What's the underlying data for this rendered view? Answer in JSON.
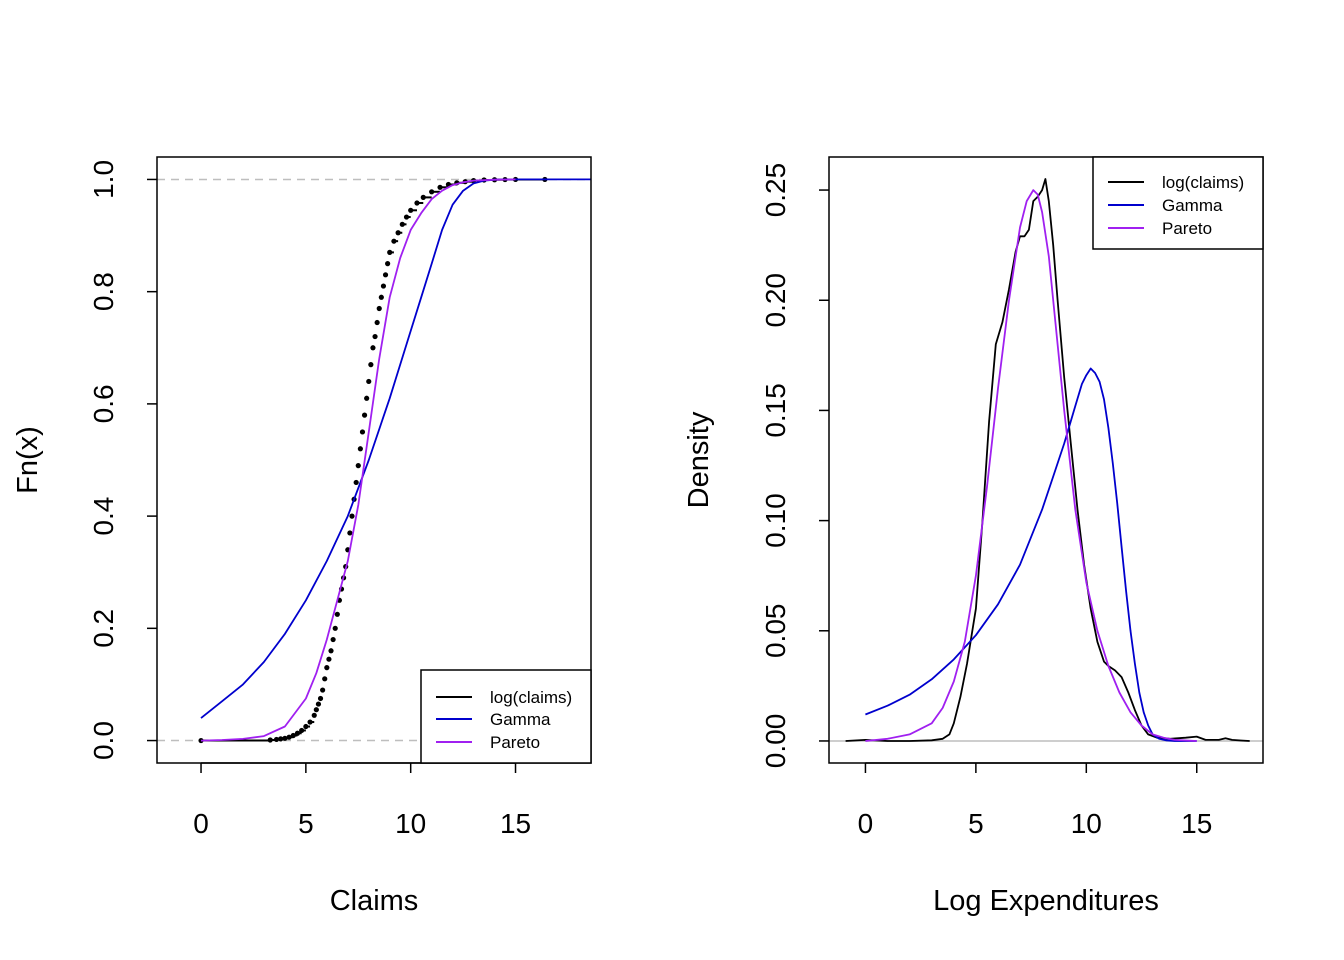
{
  "chart_data": [
    {
      "type": "line",
      "title": "",
      "xlabel": "Claims",
      "ylabel": "Fn(x)",
      "xlim": [
        -2.1,
        18.6
      ],
      "ylim": [
        -0.04,
        1.04
      ],
      "x_ticks": [
        "0",
        "5",
        "10",
        "15"
      ],
      "x_tick_values": [
        0,
        5,
        10,
        15
      ],
      "y_ticks": [
        "0.0",
        "0.2",
        "0.4",
        "0.6",
        "0.8",
        "1.0"
      ],
      "y_tick_values": [
        0.0,
        0.2,
        0.4,
        0.6,
        0.8,
        1.0
      ],
      "reference_lines_y": [
        0,
        1
      ],
      "legend": {
        "position": "bottom-right",
        "entries": [
          "log(claims)",
          "Gamma",
          "Pareto"
        ]
      },
      "colors": {
        "empirical": "#000000",
        "gamma": "#0000CD",
        "pareto": "#A020F0",
        "reference": "#BEBEBE"
      },
      "series": [
        {
          "name": "log(claims)",
          "style": "ecdf-points",
          "x": [
            0.0,
            3.3,
            3.6,
            3.8,
            4.0,
            4.2,
            4.4,
            4.6,
            4.8,
            5.0,
            5.2,
            5.4,
            5.5,
            5.6,
            5.7,
            5.8,
            5.9,
            6.0,
            6.1,
            6.2,
            6.3,
            6.4,
            6.5,
            6.6,
            6.7,
            6.8,
            6.9,
            7.0,
            7.1,
            7.2,
            7.3,
            7.4,
            7.5,
            7.6,
            7.7,
            7.8,
            7.9,
            8.0,
            8.1,
            8.2,
            8.3,
            8.4,
            8.5,
            8.6,
            8.7,
            8.8,
            8.9,
            9.0,
            9.2,
            9.4,
            9.6,
            9.8,
            10.0,
            10.3,
            10.6,
            11.0,
            11.4,
            11.8,
            12.2,
            12.6,
            13.0,
            13.5,
            14.0,
            14.5,
            15.0,
            16.4
          ],
          "y": [
            0.0,
            0.001,
            0.002,
            0.003,
            0.004,
            0.006,
            0.009,
            0.013,
            0.018,
            0.025,
            0.033,
            0.045,
            0.055,
            0.065,
            0.075,
            0.09,
            0.11,
            0.13,
            0.145,
            0.16,
            0.18,
            0.2,
            0.225,
            0.25,
            0.27,
            0.29,
            0.31,
            0.34,
            0.37,
            0.4,
            0.43,
            0.46,
            0.49,
            0.52,
            0.55,
            0.58,
            0.61,
            0.64,
            0.67,
            0.7,
            0.72,
            0.745,
            0.77,
            0.79,
            0.81,
            0.83,
            0.85,
            0.87,
            0.89,
            0.905,
            0.92,
            0.933,
            0.945,
            0.958,
            0.968,
            0.978,
            0.986,
            0.991,
            0.994,
            0.996,
            0.998,
            0.999,
            0.9995,
            0.9998,
            1.0,
            1.0
          ]
        },
        {
          "name": "Gamma",
          "style": "line",
          "x": [
            0,
            1,
            2,
            3,
            4,
            5,
            6,
            7,
            8,
            9,
            10,
            10.5,
            11,
            11.5,
            12,
            12.5,
            13,
            13.5,
            14,
            15,
            16,
            17,
            18.6
          ],
          "y": [
            0.04,
            0.07,
            0.1,
            0.14,
            0.19,
            0.25,
            0.32,
            0.4,
            0.5,
            0.61,
            0.73,
            0.79,
            0.85,
            0.91,
            0.955,
            0.98,
            0.993,
            0.998,
            0.9995,
            1.0,
            1.0,
            1.0,
            1.0
          ]
        },
        {
          "name": "Pareto",
          "style": "line",
          "x": [
            0,
            1,
            2,
            3,
            4,
            5,
            5.5,
            6,
            6.5,
            7,
            7.5,
            8,
            8.5,
            9,
            9.5,
            10,
            10.5,
            11,
            11.5,
            12,
            12.5,
            13,
            14,
            15
          ],
          "y": [
            0.0,
            0.001,
            0.003,
            0.008,
            0.025,
            0.075,
            0.12,
            0.18,
            0.25,
            0.32,
            0.42,
            0.55,
            0.68,
            0.79,
            0.86,
            0.91,
            0.94,
            0.965,
            0.98,
            0.99,
            0.995,
            0.998,
            0.9995,
            1.0
          ]
        }
      ]
    },
    {
      "type": "line",
      "title": "",
      "xlabel": "Log Expenditures",
      "ylabel": "Density",
      "xlim": [
        -1.65,
        18.0
      ],
      "ylim": [
        -0.01,
        0.265
      ],
      "x_ticks": [
        "0",
        "5",
        "10",
        "15"
      ],
      "x_tick_values": [
        0,
        5,
        10,
        15
      ],
      "y_ticks": [
        "0.00",
        "0.05",
        "0.10",
        "0.15",
        "0.20",
        "0.25"
      ],
      "y_tick_values": [
        0.0,
        0.05,
        0.1,
        0.15,
        0.2,
        0.25
      ],
      "reference_lines_y": [
        0
      ],
      "legend": {
        "position": "top-right",
        "entries": [
          "log(claims)",
          "Gamma",
          "Pareto"
        ]
      },
      "colors": {
        "empirical": "#000000",
        "gamma": "#0000CD",
        "pareto": "#A020F0",
        "reference": "#BEBEBE"
      },
      "series": [
        {
          "name": "log(claims)",
          "style": "line",
          "x": [
            -0.9,
            0.0,
            1.0,
            2.0,
            3.0,
            3.5,
            3.8,
            4.0,
            4.3,
            4.6,
            5.0,
            5.3,
            5.6,
            5.9,
            6.2,
            6.5,
            6.8,
            7.0,
            7.2,
            7.4,
            7.6,
            7.8,
            8.0,
            8.15,
            8.3,
            8.5,
            8.7,
            9.0,
            9.3,
            9.6,
            9.9,
            10.2,
            10.5,
            10.8,
            11.0,
            11.3,
            11.6,
            11.9,
            12.2,
            12.5,
            12.8,
            13.2,
            13.8,
            14.5,
            15.0,
            15.4,
            16.0,
            16.3,
            16.6,
            17.0,
            17.4
          ],
          "y": [
            0.0,
            0.0005,
            0.0,
            0.0,
            0.0003,
            0.001,
            0.003,
            0.008,
            0.02,
            0.035,
            0.06,
            0.1,
            0.145,
            0.18,
            0.19,
            0.205,
            0.222,
            0.229,
            0.229,
            0.232,
            0.245,
            0.247,
            0.25,
            0.255,
            0.245,
            0.225,
            0.2,
            0.165,
            0.135,
            0.105,
            0.08,
            0.06,
            0.045,
            0.036,
            0.034,
            0.032,
            0.029,
            0.022,
            0.014,
            0.007,
            0.003,
            0.0015,
            0.001,
            0.0015,
            0.002,
            0.0005,
            0.0005,
            0.0012,
            0.0005,
            0.0002,
            0.0
          ]
        },
        {
          "name": "Gamma",
          "style": "line",
          "x": [
            0,
            1,
            2,
            3,
            4,
            5,
            6,
            7,
            8,
            8.5,
            9,
            9.5,
            9.8,
            10.0,
            10.2,
            10.4,
            10.6,
            10.8,
            11.0,
            11.2,
            11.4,
            11.6,
            11.8,
            12.0,
            12.2,
            12.4,
            12.6,
            12.8,
            13.0,
            13.3,
            13.6,
            14.0,
            15.0
          ],
          "y": [
            0.012,
            0.016,
            0.021,
            0.028,
            0.037,
            0.048,
            0.062,
            0.08,
            0.105,
            0.12,
            0.135,
            0.152,
            0.162,
            0.166,
            0.169,
            0.167,
            0.163,
            0.155,
            0.142,
            0.126,
            0.108,
            0.088,
            0.068,
            0.05,
            0.035,
            0.022,
            0.013,
            0.007,
            0.003,
            0.001,
            0.0003,
            0.0,
            0.0
          ]
        },
        {
          "name": "Pareto",
          "style": "line",
          "x": [
            0,
            1,
            2,
            3,
            3.5,
            4,
            4.5,
            5,
            5.5,
            6,
            6.5,
            7,
            7.3,
            7.6,
            7.8,
            8.0,
            8.3,
            8.6,
            9.0,
            9.5,
            10.0,
            10.5,
            11.0,
            11.5,
            12.0,
            12.5,
            13.0,
            13.5,
            14.0,
            15.0
          ],
          "y": [
            0.0,
            0.001,
            0.003,
            0.008,
            0.015,
            0.027,
            0.045,
            0.075,
            0.115,
            0.16,
            0.2,
            0.233,
            0.245,
            0.25,
            0.248,
            0.24,
            0.22,
            0.19,
            0.15,
            0.105,
            0.072,
            0.05,
            0.034,
            0.022,
            0.013,
            0.007,
            0.003,
            0.0015,
            0.0005,
            0.0
          ]
        }
      ]
    }
  ]
}
